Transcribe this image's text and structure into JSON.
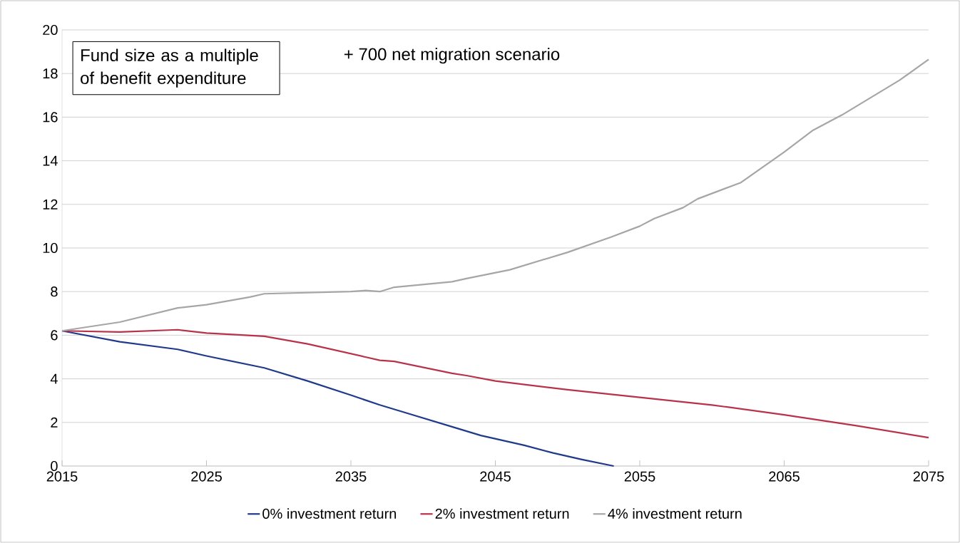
{
  "chart_data": {
    "type": "line",
    "x": [
      2015,
      2019,
      2023,
      2025,
      2029,
      2032,
      2035,
      2037,
      2039,
      2042,
      2044,
      2047,
      2049,
      2051,
      2053.2
    ],
    "series": [
      {
        "name": "0% investment return",
        "color": "#1f3a8a",
        "values": [
          6.2,
          5.7,
          5.35,
          5.05,
          4.5,
          3.9,
          3.25,
          2.8,
          2.4,
          1.8,
          1.4,
          0.95,
          0.6,
          0.3,
          0
        ]
      },
      {
        "name": "2% investment return",
        "color": "#b8324a",
        "x": [
          2015,
          2019,
          2023,
          2025,
          2029,
          2032,
          2036,
          2037,
          2038,
          2042,
          2043,
          2045,
          2050,
          2055,
          2060,
          2065,
          2070,
          2075
        ],
        "values": [
          6.2,
          6.15,
          6.25,
          6.1,
          5.95,
          5.6,
          5.0,
          4.85,
          4.8,
          4.25,
          4.15,
          3.9,
          3.5,
          3.15,
          2.8,
          2.35,
          1.85,
          1.3
        ]
      },
      {
        "name": "4% investment return",
        "color": "#a6a6a6",
        "x": [
          2015,
          2019,
          2023,
          2025,
          2028,
          2029,
          2035,
          2036,
          2037,
          2038,
          2042,
          2043,
          2046,
          2050,
          2053,
          2055,
          2056,
          2058,
          2059,
          2062,
          2065,
          2067,
          2069,
          2071,
          2073,
          2075
        ],
        "values": [
          6.2,
          6.6,
          7.25,
          7.4,
          7.75,
          7.9,
          8.0,
          8.05,
          8.0,
          8.2,
          8.45,
          8.6,
          9.0,
          9.8,
          10.5,
          11.0,
          11.35,
          11.85,
          12.25,
          13.0,
          14.4,
          15.4,
          16.1,
          16.9,
          17.7,
          18.65
        ]
      }
    ],
    "xlim": [
      2015,
      2075
    ],
    "xticks": [
      2015,
      2025,
      2035,
      2045,
      2055,
      2065,
      2075
    ],
    "ylim": [
      0,
      20
    ],
    "yticks": [
      0,
      2,
      4,
      6,
      8,
      10,
      12,
      14,
      16,
      18,
      20
    ],
    "grid": "y",
    "legend": "bottom",
    "marker": "none",
    "line_style": "solid",
    "annotations": [
      "Fund size as a multiple of benefit expenditure",
      "+ 700 net migration scenario"
    ]
  }
}
